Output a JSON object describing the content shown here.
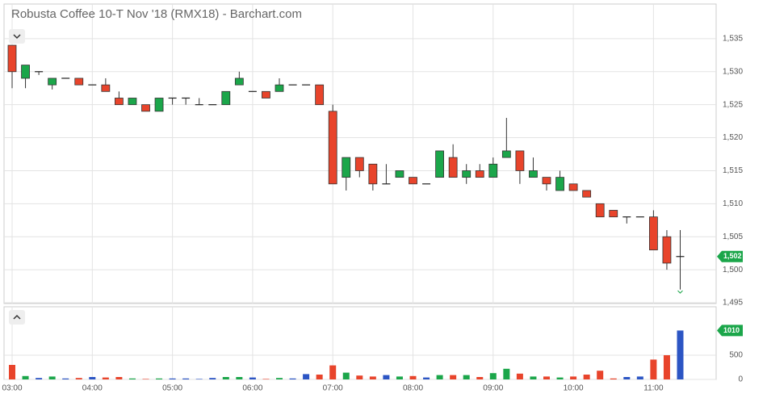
{
  "chart_data": {
    "type": "candlestick",
    "title": "Robusta Coffee 10-T Nov '18 (RMX18) - Barchart.com",
    "categories": [
      "03:00",
      null,
      null,
      null,
      null,
      null,
      "04:00",
      null,
      null,
      null,
      null,
      null,
      "05:00",
      null,
      null,
      null,
      null,
      null,
      "06:00",
      null,
      null,
      null,
      null,
      null,
      "07:00",
      null,
      null,
      null,
      null,
      null,
      "08:00",
      null,
      null,
      null,
      null,
      null,
      "09:00",
      null,
      null,
      null,
      null,
      null,
      "10:00",
      null,
      null,
      null,
      null,
      null,
      "11:00",
      null,
      null
    ],
    "open": [
      1534,
      1529,
      1530,
      1528,
      1529,
      1529,
      1528,
      1528,
      1526,
      1525,
      1525,
      1524,
      1526,
      1526,
      1525,
      1525,
      1525,
      1528,
      1527,
      1527,
      1527,
      1528,
      1528,
      1528,
      1524,
      1514,
      1517,
      1516,
      1513,
      1514,
      1514,
      1513,
      1514,
      1517,
      1514,
      1515,
      1514,
      1517,
      1518,
      1514,
      1514,
      1512,
      1513,
      1512,
      1510,
      1509,
      1508,
      1508,
      1508,
      1505,
      1502
    ],
    "high": [
      1534,
      1531,
      1530,
      1529,
      1529,
      1529,
      1528,
      1529,
      1527,
      1526,
      1525,
      1526,
      1526,
      1526,
      1526,
      1525,
      1527,
      1530,
      1527,
      1527,
      1529,
      1528,
      1528,
      1528,
      1525,
      1517,
      1517,
      1516,
      1516,
      1515,
      1514,
      1513,
      1518,
      1519,
      1516,
      1516,
      1517,
      1523,
      1518,
      1517,
      1514,
      1515,
      1513,
      1512,
      1510,
      1509,
      1508,
      1508,
      1509,
      1506,
      1506
    ],
    "low": [
      1527.5,
      1527.5,
      1529.5,
      1527.3,
      1529,
      1528,
      1528,
      1527,
      1525,
      1525,
      1524,
      1524,
      1525,
      1525,
      1525,
      1525,
      1525,
      1528,
      1527,
      1526,
      1527,
      1528,
      1528,
      1525,
      1513,
      1512,
      1514,
      1512,
      1513,
      1514,
      1513,
      1513,
      1514,
      1514,
      1513,
      1514,
      1514,
      1517,
      1513,
      1514,
      1512,
      1512,
      1512,
      1511,
      1508,
      1508,
      1507,
      1508,
      1503,
      1500,
      1497
    ],
    "close": [
      1530,
      1531,
      1530,
      1529,
      1529,
      1528,
      1528,
      1527,
      1525,
      1526,
      1524,
      1526,
      1526,
      1526,
      1525,
      1525,
      1527,
      1529,
      1527,
      1526,
      1528,
      1528,
      1528,
      1525,
      1513,
      1517,
      1515,
      1513,
      1513,
      1515,
      1513,
      1513,
      1518,
      1514,
      1515,
      1514,
      1516,
      1518,
      1515,
      1515,
      1513,
      1514,
      1512,
      1511,
      1508,
      1508,
      1508,
      1508,
      1503,
      1501,
      1502
    ],
    "volume": [
      300,
      70,
      30,
      60,
      20,
      30,
      50,
      40,
      50,
      20,
      10,
      20,
      20,
      20,
      10,
      30,
      50,
      50,
      40,
      10,
      30,
      20,
      110,
      100,
      290,
      140,
      80,
      60,
      90,
      60,
      70,
      40,
      90,
      90,
      90,
      50,
      130,
      220,
      120,
      60,
      60,
      40,
      60,
      100,
      180,
      20,
      50,
      60,
      410,
      500,
      1010
    ],
    "up_color": "#1ba64a",
    "down_color": "#e8442b",
    "flat_color": "#222222",
    "flat_volume_color": "#2c55c4",
    "ylim": [
      1495,
      1540
    ],
    "yticks": [
      {
        "value": 1495,
        "label": "1,495"
      },
      {
        "value": 1500,
        "label": "1,500"
      },
      {
        "value": 1505,
        "label": "1,505"
      },
      {
        "value": 1510,
        "label": "1,510"
      },
      {
        "value": 1515,
        "label": "1,515"
      },
      {
        "value": 1520,
        "label": "1,520"
      },
      {
        "value": 1525,
        "label": "1,525"
      },
      {
        "value": 1530,
        "label": "1,530"
      },
      {
        "value": 1535,
        "label": "1,535"
      }
    ],
    "volume_ylim": [
      0,
      1500
    ],
    "volume_yticks": [
      0,
      500
    ],
    "last_price": {
      "value": 1502,
      "label": "1,502"
    },
    "last_volume": 1010,
    "grid": true
  }
}
